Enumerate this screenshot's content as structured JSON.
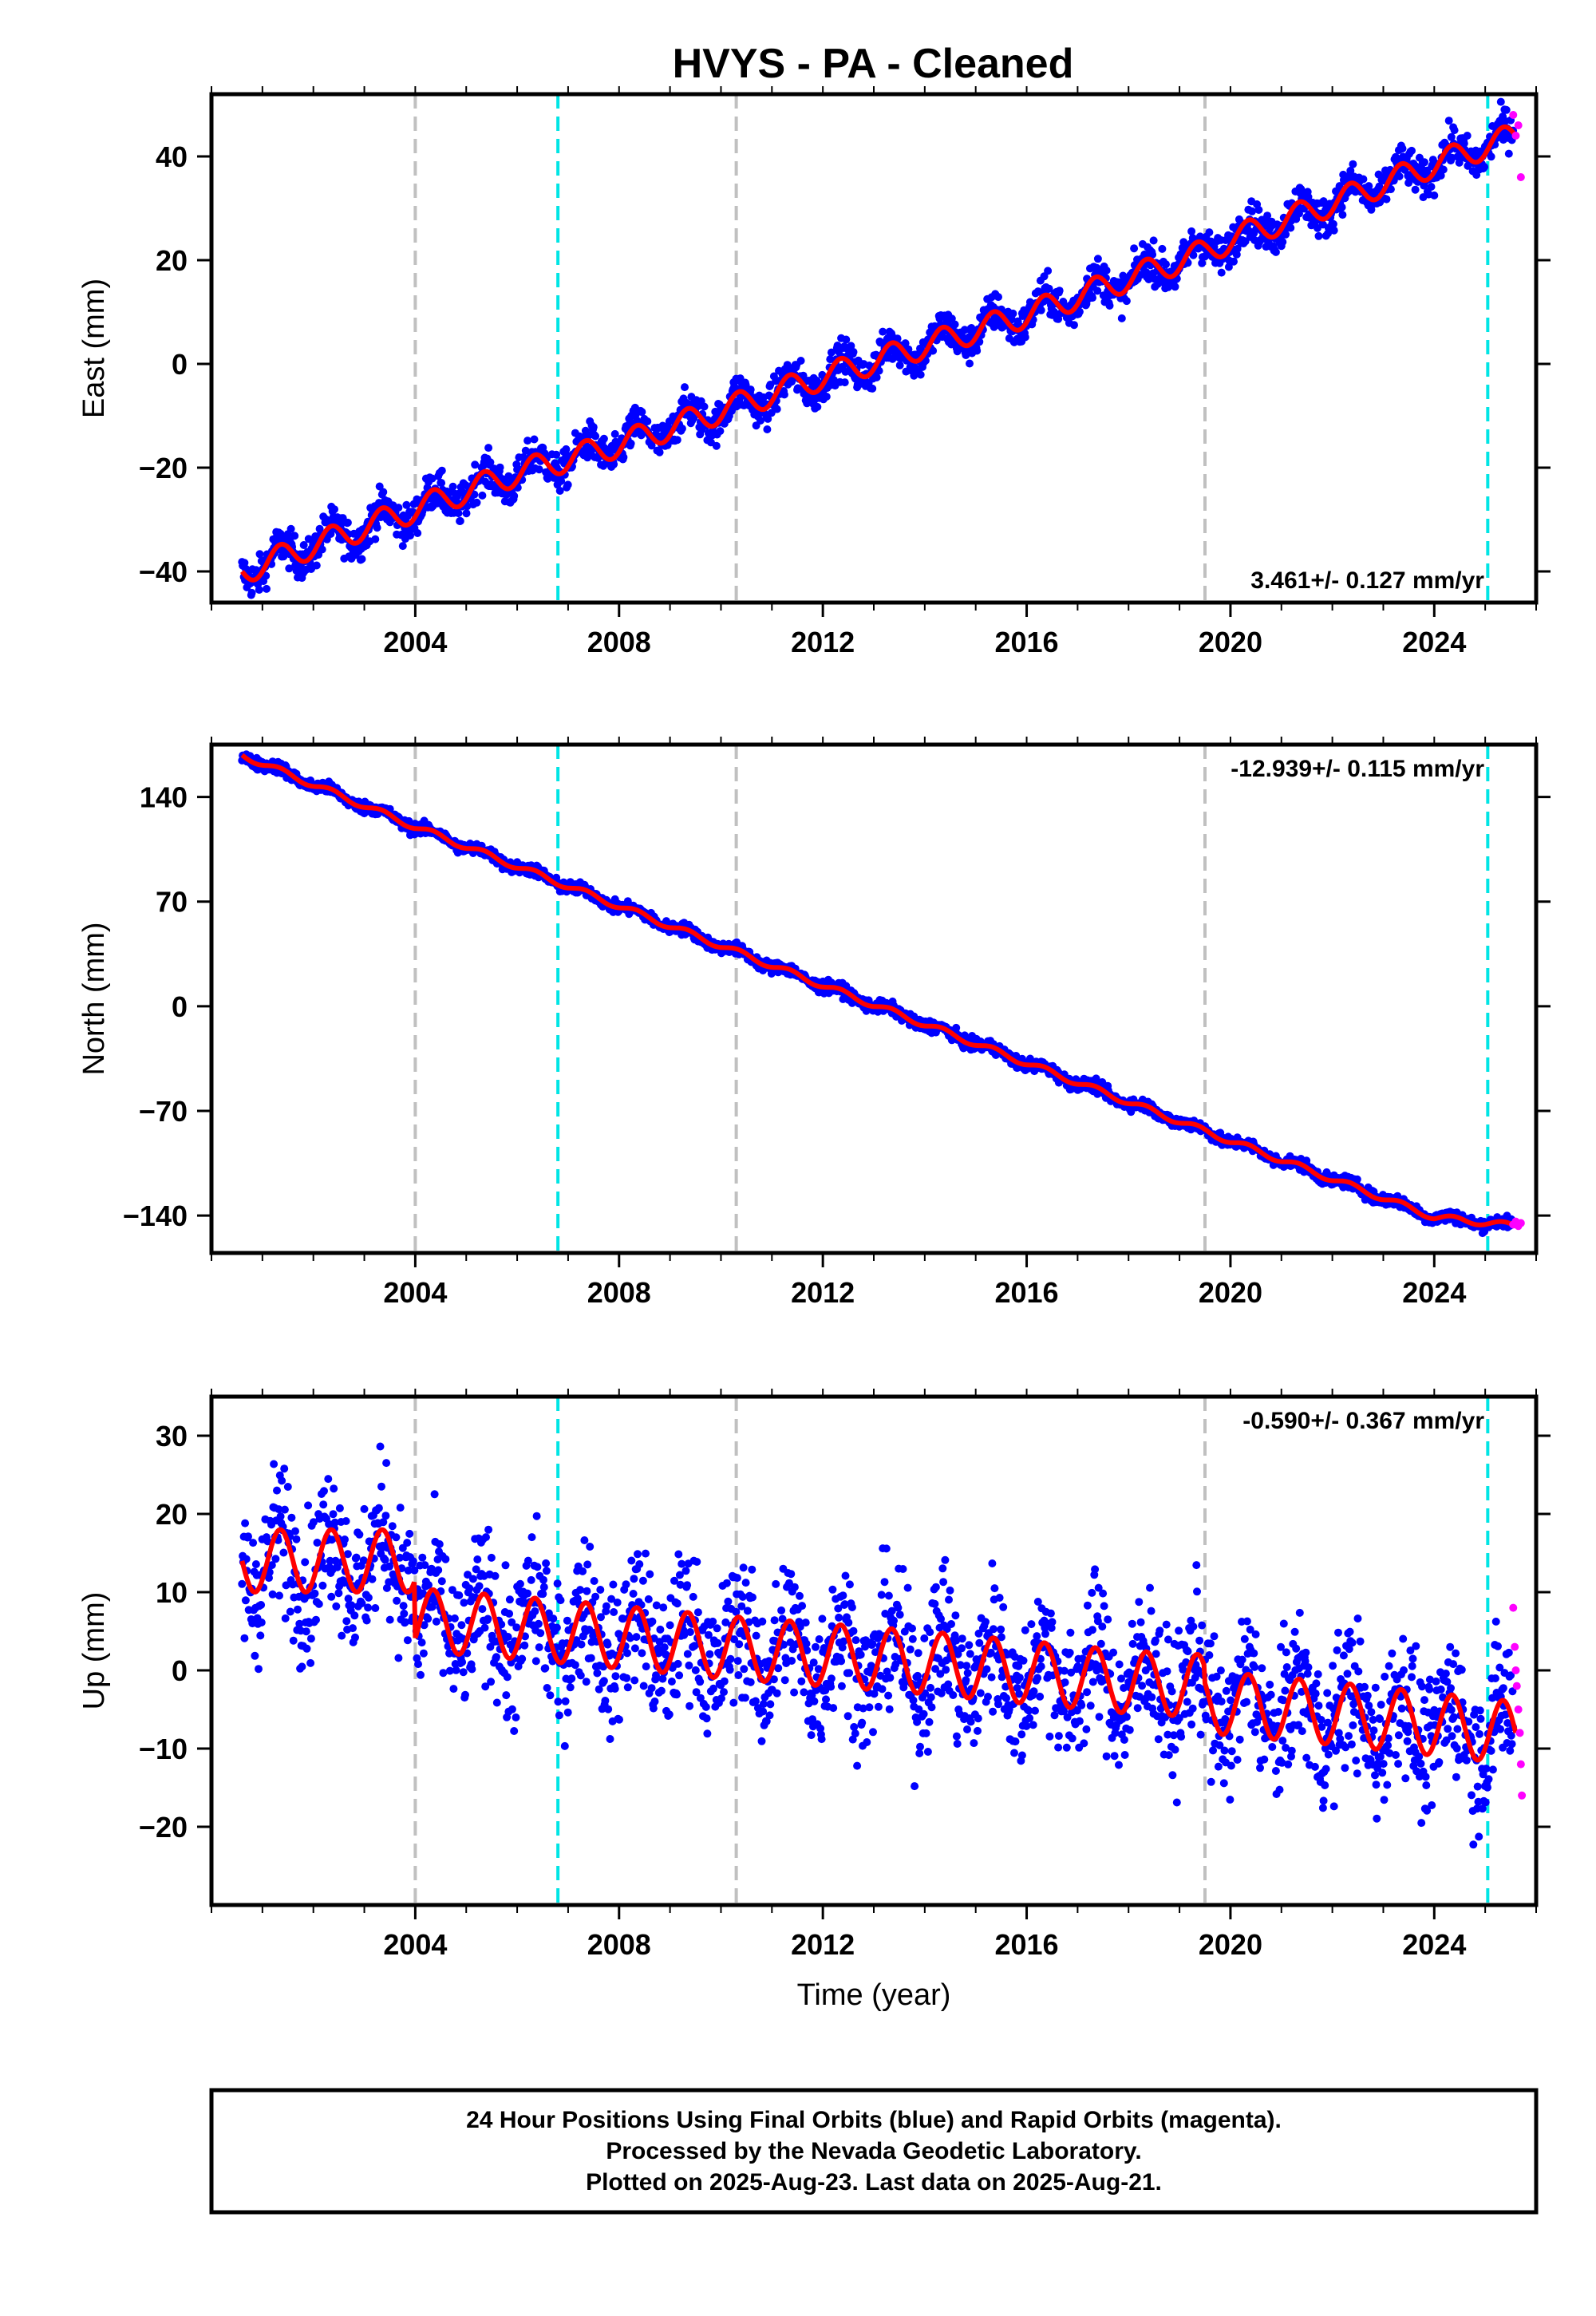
{
  "title": "HVYS  - PA - Cleaned",
  "colors": {
    "final_orbits": "#0000ff",
    "rapid_orbits": "#ff00ff",
    "model": "#ff0000",
    "event_line_gray": "#c0c0c0",
    "event_line_cyan": "#00e5e5"
  },
  "footer": {
    "line1": "24 Hour Positions Using Final Orbits (blue) and Rapid Orbits (magenta).",
    "line2": "Processed by the Nevada Geodetic Laboratory.",
    "line3": "Plotted on 2025-Aug-23. Last data on 2025-Aug-21."
  },
  "chart_data": [
    {
      "type": "scatter",
      "ylabel": "East (mm)",
      "xlabel": "",
      "rate_label": "3.461+/- 0.127 mm/yr",
      "xlim": [
        2000.0,
        2026.0
      ],
      "ylim": [
        -46,
        52
      ],
      "xticks": [
        2004,
        2008,
        2012,
        2016,
        2020,
        2024
      ],
      "xtick_labels": [
        "2004",
        "2008",
        "2012",
        "2016",
        "2020",
        "2024"
      ],
      "yticks": [
        -40,
        -20,
        0,
        20,
        40
      ],
      "ytick_labels": [
        "−40",
        "−20",
        "0",
        "20",
        "40"
      ],
      "rate_mm_per_yr": 3.461,
      "model": {
        "x": [
          2000.6,
          2002.0,
          2004.0,
          2006.0,
          2008.0,
          2010.0,
          2012.0,
          2014.0,
          2016.0,
          2018.0,
          2019.5,
          2020.0,
          2022.0,
          2024.0,
          2025.6
        ],
        "y": [
          -40.0,
          -35.0,
          -28.0,
          -21.0,
          -15.5,
          -9.0,
          -2.5,
          3.5,
          9.5,
          16.5,
          21.5,
          24.0,
          31.0,
          38.5,
          44.0
        ]
      },
      "seasonal_amplitude_mm": 2.5,
      "scatter_mm": 1.8,
      "rapid_points": {
        "x": [
          2025.55,
          2025.6,
          2025.65,
          2025.7
        ],
        "y": [
          48,
          44,
          46,
          36
        ]
      },
      "event_lines": [
        {
          "x": 2004.0,
          "color": "gray"
        },
        {
          "x": 2006.8,
          "color": "cyan"
        },
        {
          "x": 2010.3,
          "color": "gray"
        },
        {
          "x": 2019.5,
          "color": "gray"
        },
        {
          "x": 2025.05,
          "color": "cyan"
        }
      ]
    },
    {
      "type": "scatter",
      "ylabel": "North (mm)",
      "xlabel": "",
      "rate_label": "-12.939+/- 0.115 mm/yr",
      "xlim": [
        2000.0,
        2026.0
      ],
      "ylim": [
        -165,
        175
      ],
      "xticks": [
        2004,
        2008,
        2012,
        2016,
        2020,
        2024
      ],
      "xtick_labels": [
        "2004",
        "2008",
        "2012",
        "2016",
        "2020",
        "2024"
      ],
      "yticks": [
        -140,
        -70,
        0,
        70,
        140
      ],
      "ytick_labels": [
        "−140",
        "−70",
        "0",
        "70",
        "140"
      ],
      "rate_mm_per_yr": -12.939,
      "model": {
        "x": [
          2000.6,
          2004.0,
          2008.0,
          2012.0,
          2016.0,
          2020.0,
          2024.0,
          2025.6
        ],
        "y": [
          168.0,
          120.0,
          67.0,
          14.0,
          -38.0,
          -90.0,
          -141.0,
          -147.0
        ]
      },
      "seasonal_amplitude_mm": 2.0,
      "scatter_mm": 2.0,
      "rapid_points": {
        "x": [
          2025.55,
          2025.6,
          2025.65,
          2025.7
        ],
        "y": [
          -146,
          -144,
          -147,
          -145
        ]
      },
      "event_lines": [
        {
          "x": 2004.0,
          "color": "gray"
        },
        {
          "x": 2006.8,
          "color": "cyan"
        },
        {
          "x": 2010.3,
          "color": "gray"
        },
        {
          "x": 2019.5,
          "color": "gray"
        },
        {
          "x": 2025.05,
          "color": "cyan"
        }
      ]
    },
    {
      "type": "scatter",
      "ylabel": "Up (mm)",
      "xlabel": "Time (year)",
      "rate_label": "-0.590+/- 0.367 mm/yr",
      "xlim": [
        2000.0,
        2026.0
      ],
      "ylim": [
        -30,
        35
      ],
      "xticks": [
        2004,
        2008,
        2012,
        2016,
        2020,
        2024
      ],
      "xtick_labels": [
        "2004",
        "2008",
        "2012",
        "2016",
        "2020",
        "2024"
      ],
      "yticks": [
        -20,
        -10,
        0,
        10,
        20,
        30
      ],
      "ytick_labels": [
        "−20",
        "−10",
        "0",
        "10",
        "20",
        "30"
      ],
      "rate_mm_per_yr": -0.59,
      "model": {
        "x": [
          2000.6,
          2003.99,
          2004.0,
          2006.8,
          2010.0,
          2014.0,
          2018.0,
          2019.49,
          2019.5,
          2022.0,
          2025.6
        ],
        "y": [
          14.0,
          14.0,
          6.5,
          5.0,
          3.0,
          1.0,
          -1.5,
          -2.0,
          -4.0,
          -5.5,
          -8.0
        ]
      },
      "seasonal_amplitude_mm": 4.0,
      "scatter_mm": 4.5,
      "rapid_points": {
        "x": [
          2025.55,
          2025.58,
          2025.6,
          2025.62,
          2025.65,
          2025.68,
          2025.7,
          2025.72
        ],
        "y": [
          8,
          3,
          0,
          -2,
          -5,
          -8,
          -12,
          -16
        ]
      },
      "event_lines": [
        {
          "x": 2004.0,
          "color": "gray"
        },
        {
          "x": 2006.8,
          "color": "cyan"
        },
        {
          "x": 2010.3,
          "color": "gray"
        },
        {
          "x": 2019.5,
          "color": "gray"
        },
        {
          "x": 2025.05,
          "color": "cyan"
        }
      ]
    }
  ]
}
